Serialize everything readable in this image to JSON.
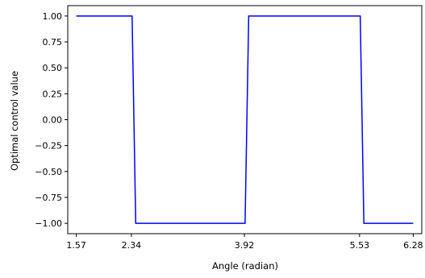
{
  "chart_data": {
    "type": "line",
    "xlabel": "Angle (radian)",
    "ylabel": "Optimal control value",
    "xlim": [
      1.45,
      6.4
    ],
    "ylim": [
      -1.1,
      1.1
    ],
    "x_ticks": [
      1.57,
      2.34,
      3.92,
      5.53,
      6.28
    ],
    "x_tick_labels": [
      "1.57",
      "2.34",
      "3.92",
      "5.53",
      "6.28"
    ],
    "y_ticks": [
      1.0,
      0.75,
      0.5,
      0.25,
      0.0,
      -0.25,
      -0.5,
      -0.75,
      -1.0
    ],
    "y_tick_labels": [
      "1.00",
      "0.75",
      "0.50",
      "0.25",
      "0.00",
      "−0.25",
      "−0.50",
      "−0.75",
      "−1.00"
    ],
    "grid": false,
    "series": [
      {
        "color": "#0000ff",
        "x": [
          1.57,
          2.35,
          2.4,
          3.93,
          3.98,
          5.54,
          5.59,
          6.28
        ],
        "y": [
          1.0,
          1.0,
          -1.0,
          -1.0,
          1.0,
          1.0,
          -1.0,
          -1.0
        ]
      }
    ]
  }
}
